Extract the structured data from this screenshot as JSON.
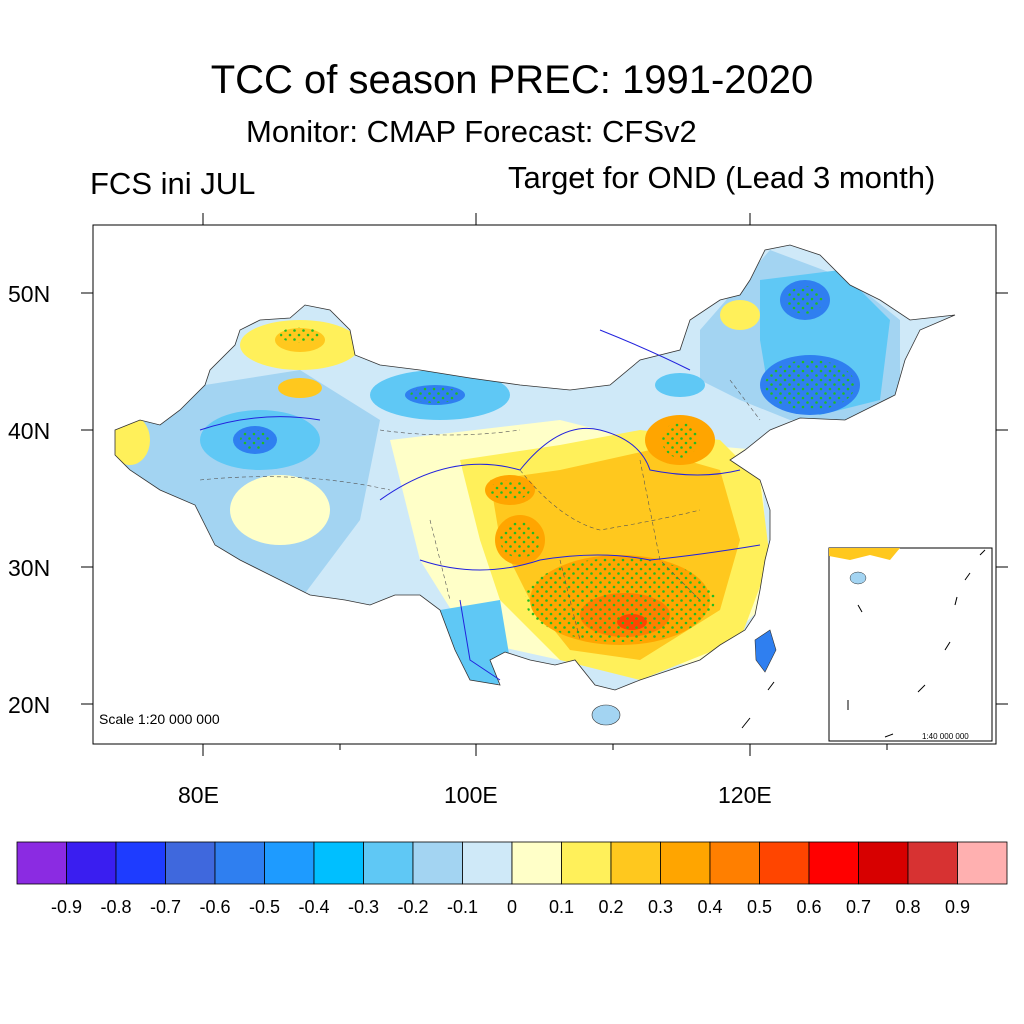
{
  "plot": {
    "title": "TCC of season PREC: 1991-2020",
    "subtitle": "Monitor: CMAP   Forecast: CFSv2",
    "left_string": "FCS ini JUL",
    "right_string": "Target for OND (Lead 3 month)",
    "scale_main": "Scale 1:20 000 000",
    "scale_inset": "1:40 000 000"
  },
  "axes": {
    "lat_ticks": [
      "50N",
      "40N",
      "30N",
      "20N"
    ],
    "lon_ticks": [
      "80E",
      "100E",
      "120E"
    ]
  },
  "colorbar": {
    "colors": [
      "#8b2be2",
      "#3a1ef0",
      "#1e3cff",
      "#3f68dd",
      "#2f7ff0",
      "#1e9bff",
      "#00bfff",
      "#5fc8f5",
      "#a3d4f2",
      "#cfe9f8",
      "#ffffc8",
      "#fff05a",
      "#ffc81e",
      "#ffa500",
      "#ff7f00",
      "#ff4500",
      "#ff0000",
      "#d70000",
      "#d73232",
      "#ffb0b0"
    ],
    "labels": [
      "-0.9",
      "-0.8",
      "-0.7",
      "-0.6",
      "-0.5",
      "-0.4",
      "-0.3",
      "-0.2",
      "-0.1",
      "0",
      "0.1",
      "0.2",
      "0.3",
      "0.4",
      "0.5",
      "0.6",
      "0.7",
      "0.8",
      "0.9"
    ]
  },
  "chart_data": {
    "type": "heatmap",
    "variable": "TCC of season PREC",
    "period": "1991-2020",
    "region_extent": {
      "lon": [
        72,
        138
      ],
      "lat": [
        17,
        55
      ]
    },
    "levels": [
      -0.9,
      -0.8,
      -0.7,
      -0.6,
      -0.5,
      -0.4,
      -0.3,
      -0.2,
      -0.1,
      0,
      0.1,
      0.2,
      0.3,
      0.4,
      0.5,
      0.6,
      0.7,
      0.8,
      0.9
    ]
  }
}
